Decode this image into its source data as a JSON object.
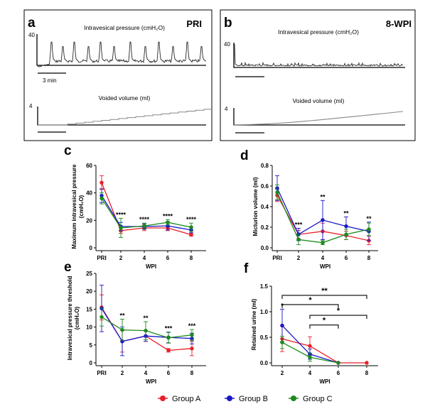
{
  "panels": {
    "a": {
      "letter": "a",
      "tag": "PRI",
      "pressure_title": "Intravesical pressure (cmH₂O)",
      "pressure_scale": "40",
      "time_scale": "3 min",
      "volume_title": "Voided volume (ml)",
      "volume_scale": "4"
    },
    "b": {
      "letter": "b",
      "tag": "8-WPI",
      "pressure_title": "Intravesical pressure (cmH₂O)",
      "pressure_scale": "40",
      "volume_title": "Voided volume (ml)",
      "volume_scale": "4"
    }
  },
  "legend": [
    {
      "name": "Group A",
      "color": "#e8202a"
    },
    {
      "name": "Group B",
      "color": "#1818c8"
    },
    {
      "name": "Group C",
      "color": "#1c8a1c"
    }
  ],
  "chart_data": [
    {
      "panel": "c",
      "type": "line",
      "xlabel": "WPI",
      "ylabel": [
        "Maximum intravesical pressure",
        "(cmH₂O)"
      ],
      "categories": [
        "PRI",
        "2",
        "4",
        "6",
        "8"
      ],
      "ylim": [
        0,
        60
      ],
      "yticks": [
        "0",
        "20",
        "40",
        "60"
      ],
      "ytick_values": [
        0,
        20,
        40,
        60
      ],
      "series": [
        {
          "name": "Group A",
          "color": "#e8202a",
          "values": [
            47.5,
            12.5,
            14.5,
            14.5,
            9.5
          ],
          "err": [
            5,
            2,
            2,
            2,
            1
          ]
        },
        {
          "name": "Group B",
          "color": "#1818c8",
          "values": [
            38,
            15.5,
            15.5,
            16,
            13
          ],
          "err": [
            5,
            3,
            2,
            3,
            2
          ]
        },
        {
          "name": "Group C",
          "color": "#1c8a1c",
          "values": [
            36,
            14.5,
            16,
            18.5,
            15
          ],
          "err": [
            4,
            7,
            2,
            2,
            3
          ]
        }
      ],
      "annotations": [
        {
          "x": "2",
          "text": "****"
        },
        {
          "x": "4",
          "text": "****"
        },
        {
          "x": "6",
          "text": "****"
        },
        {
          "x": "8",
          "text": "****"
        }
      ]
    },
    {
      "panel": "d",
      "type": "line",
      "xlabel": "WPI",
      "ylabel": [
        "Micturion volume (ml)"
      ],
      "categories": [
        "PRI",
        "2",
        "4",
        "6",
        "8"
      ],
      "ylim": [
        0,
        0.8
      ],
      "yticks": [
        "0.0",
        "0.2",
        "0.4",
        "0.6",
        "0.8"
      ],
      "ytick_values": [
        0,
        0.2,
        0.4,
        0.6,
        0.8
      ],
      "series": [
        {
          "name": "Group A",
          "color": "#e8202a",
          "values": [
            0.51,
            0.13,
            0.16,
            0.12,
            0.07
          ],
          "err": [
            0.06,
            0.04,
            0.08,
            0.04,
            0.04
          ]
        },
        {
          "name": "Group B",
          "color": "#1818c8",
          "values": [
            0.58,
            0.13,
            0.27,
            0.21,
            0.16
          ],
          "err": [
            0.12,
            0.06,
            0.19,
            0.09,
            0.09
          ]
        },
        {
          "name": "Group C",
          "color": "#1c8a1c",
          "values": [
            0.54,
            0.08,
            0.05,
            0.13,
            0.18
          ],
          "err": [
            0.07,
            0.05,
            0.02,
            0.05,
            0.06
          ]
        }
      ],
      "annotations": [
        {
          "x": "2",
          "text": "***"
        },
        {
          "x": "4",
          "text": "**"
        },
        {
          "x": "6",
          "text": "**"
        },
        {
          "x": "8",
          "text": "**"
        }
      ]
    },
    {
      "panel": "e",
      "type": "line",
      "xlabel": "WPI",
      "ylabel": [
        "Intravesical pressure threshold",
        "(cmH₂O)"
      ],
      "categories": [
        "PRI",
        "2",
        "4",
        "6",
        "8"
      ],
      "ylim": [
        0,
        25
      ],
      "yticks": [
        "0",
        "5",
        "10",
        "15",
        "20",
        "25"
      ],
      "ytick_values": [
        0,
        5,
        10,
        15,
        20,
        25
      ],
      "series": [
        {
          "name": "Group A",
          "color": "#e8202a",
          "values": [
            15.5,
            6,
            7.5,
            3.5,
            4
          ],
          "err": [
            3.5,
            3,
            1.5,
            0.5,
            2
          ]
        },
        {
          "name": "Group B",
          "color": "#1818c8",
          "values": [
            15.2,
            6,
            7.5,
            7.1,
            6.8
          ],
          "err": [
            6.5,
            4,
            1.5,
            1.5,
            1.5
          ]
        },
        {
          "name": "Group C",
          "color": "#1c8a1c",
          "values": [
            12.8,
            9.2,
            9,
            7,
            7.8
          ],
          "err": [
            2.5,
            3,
            2.5,
            1.5,
            1.5
          ]
        }
      ],
      "annotations": [
        {
          "x": "2",
          "text": "**"
        },
        {
          "x": "4",
          "text": "**"
        },
        {
          "x": "6",
          "text": "***"
        },
        {
          "x": "8",
          "text": "***"
        }
      ]
    },
    {
      "panel": "f",
      "type": "line",
      "xlabel": "WPI",
      "ylabel": [
        "Retained urine (ml)"
      ],
      "categories": [
        "2",
        "4",
        "6",
        "8"
      ],
      "ylim": [
        0,
        1.5
      ],
      "yticks": [
        "0.0",
        "0.5",
        "1.0",
        "1.5"
      ],
      "ytick_values": [
        0,
        0.5,
        1.0,
        1.5
      ],
      "series": [
        {
          "name": "Group A",
          "color": "#e8202a",
          "values": [
            0.47,
            0.33,
            0,
            0
          ],
          "err": [
            0.25,
            0.18,
            0,
            0
          ]
        },
        {
          "name": "Group B",
          "color": "#1818c8",
          "values": [
            0.73,
            0.17,
            0,
            null
          ],
          "err": [
            0.32,
            0.1,
            0,
            0
          ]
        },
        {
          "name": "Group C",
          "color": "#1c8a1c",
          "values": [
            0.4,
            0.11,
            0,
            null
          ],
          "err": [
            0.12,
            0.08,
            0,
            0
          ]
        }
      ],
      "annotations": [
        {
          "x": "2",
          "text": "*"
        }
      ],
      "brackets": [
        {
          "from": "2",
          "to": "8",
          "level": 1.32,
          "text": "**"
        },
        {
          "from": "2",
          "to": "6",
          "level": 1.14,
          "text": "*"
        },
        {
          "from": "4",
          "to": "8",
          "level": 0.93,
          "text": "*"
        },
        {
          "from": "4",
          "to": "6",
          "level": 0.74,
          "text": "*"
        }
      ]
    }
  ]
}
